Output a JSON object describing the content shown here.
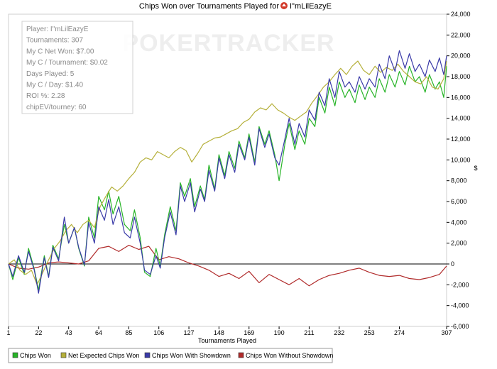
{
  "chart_data": {
    "type": "line",
    "title": "Chips Won over Tournaments Played for",
    "player_badge": "I\"mLilEazyE",
    "xlabel": "Tournaments Played",
    "ylabel": "$",
    "xlim": [
      1,
      307
    ],
    "ylim": [
      -6000,
      24000
    ],
    "x_ticks": [
      "1",
      "22",
      "43",
      "64",
      "85",
      "106",
      "127",
      "148",
      "169",
      "190",
      "211",
      "232",
      "253",
      "274",
      "307"
    ],
    "y_ticks": [
      "24,000",
      "22,000",
      "20,000",
      "18,000",
      "16,000",
      "14,000",
      "12,000",
      "10,000",
      "8,000",
      "6,000",
      "4,000",
      "2,000",
      "0",
      "-2,000",
      "-4,000",
      "-6,000"
    ],
    "watermark": "POKERTRACKER",
    "legend_position": "bottom",
    "stats": [
      "Player: I\"mLilEazyE",
      "Tournaments: 307",
      "My C Net Won: $7.00",
      "My C / Tournament: $0.02",
      "Days Played: 5",
      "My C / Day: $1.40",
      "ROI %: 2.28",
      "chipEV/tourney: 60"
    ],
    "series": [
      {
        "name": "Chips Won",
        "color": "#27b427",
        "x": [
          1,
          4,
          8,
          12,
          15,
          19,
          22,
          26,
          29,
          32,
          36,
          40,
          43,
          47,
          50,
          54,
          57,
          61,
          64,
          68,
          71,
          74,
          78,
          82,
          86,
          89,
          93,
          96,
          100,
          104,
          107,
          110,
          114,
          118,
          121,
          124,
          128,
          131,
          135,
          138,
          141,
          145,
          148,
          152,
          155,
          159,
          162,
          166,
          169,
          173,
          176,
          180,
          183,
          187,
          190,
          194,
          197,
          201,
          204,
          208,
          211,
          215,
          218,
          222,
          225,
          229,
          232,
          236,
          239,
          243,
          246,
          250,
          253,
          257,
          260,
          264,
          267,
          271,
          274,
          278,
          281,
          285,
          288,
          292,
          295,
          299,
          302,
          305,
          307
        ],
        "values": [
          0,
          -1500,
          600,
          -1000,
          1500,
          -500,
          -2500,
          800,
          -1200,
          1800,
          500,
          3800,
          2000,
          3500,
          1500,
          -200,
          4500,
          2500,
          6500,
          5200,
          7000,
          4800,
          6500,
          3800,
          3200,
          5200,
          2500,
          -800,
          -1200,
          1500,
          -200,
          2800,
          5500,
          3200,
          7800,
          6500,
          8200,
          5500,
          7500,
          6200,
          9500,
          7200,
          10500,
          8500,
          10800,
          9200,
          11800,
          10200,
          12500,
          9800,
          13200,
          11500,
          12800,
          10500,
          8000,
          11500,
          13500,
          11000,
          12800,
          11500,
          14000,
          13200,
          16000,
          14500,
          17000,
          15200,
          17500,
          16000,
          16800,
          15500,
          17200,
          15800,
          17000,
          16000,
          17800,
          16500,
          18200,
          17000,
          18500,
          17200,
          19000,
          17500,
          18000,
          16500,
          18200,
          16800,
          17500,
          16000,
          19000
        ]
      },
      {
        "name": "Net Expected Chips Won",
        "color": "#b5b03a",
        "x": [
          1,
          5,
          9,
          13,
          17,
          21,
          25,
          29,
          33,
          37,
          41,
          45,
          49,
          53,
          57,
          61,
          65,
          69,
          73,
          77,
          81,
          85,
          89,
          93,
          97,
          101,
          105,
          109,
          113,
          117,
          121,
          125,
          129,
          133,
          137,
          141,
          145,
          149,
          153,
          157,
          161,
          165,
          169,
          173,
          177,
          181,
          185,
          189,
          193,
          197,
          201,
          205,
          209,
          213,
          217,
          221,
          225,
          229,
          233,
          237,
          241,
          245,
          249,
          253,
          257,
          261,
          265,
          269,
          273,
          277,
          281,
          285,
          289,
          293,
          297,
          301,
          305,
          307
        ],
        "values": [
          0,
          400,
          -600,
          -1000,
          -600,
          -2000,
          -800,
          400,
          1500,
          2200,
          3200,
          3800,
          3000,
          3800,
          4200,
          3500,
          5500,
          6500,
          7400,
          7000,
          7500,
          8200,
          8800,
          9800,
          10200,
          10000,
          10800,
          10500,
          10200,
          10800,
          11200,
          10900,
          9800,
          10600,
          11500,
          11800,
          12100,
          12200,
          12500,
          12800,
          13000,
          13600,
          13900,
          14600,
          15000,
          14800,
          15400,
          14800,
          14500,
          14100,
          13800,
          14200,
          14600,
          15500,
          16200,
          17000,
          17500,
          18200,
          18800,
          18200,
          19000,
          19500,
          18600,
          18200,
          19000,
          18400,
          18900,
          18600,
          19200,
          18500,
          18000,
          17500,
          17300,
          18000,
          17000,
          16800,
          17800,
          19500
        ]
      },
      {
        "name": "Chips Won With Showdown",
        "color": "#3a3aa8",
        "x": [
          1,
          4,
          8,
          12,
          15,
          19,
          22,
          26,
          29,
          32,
          36,
          40,
          43,
          47,
          50,
          54,
          57,
          61,
          64,
          68,
          71,
          74,
          78,
          82,
          86,
          89,
          93,
          96,
          100,
          104,
          107,
          110,
          114,
          118,
          121,
          124,
          128,
          131,
          135,
          138,
          141,
          145,
          148,
          152,
          155,
          159,
          162,
          166,
          169,
          173,
          176,
          180,
          183,
          187,
          190,
          194,
          197,
          201,
          204,
          208,
          211,
          215,
          218,
          222,
          225,
          229,
          232,
          236,
          239,
          243,
          246,
          250,
          253,
          257,
          260,
          264,
          267,
          271,
          274,
          278,
          281,
          285,
          288,
          292,
          295,
          299,
          302,
          305,
          307
        ],
        "values": [
          0,
          -1200,
          800,
          -800,
          1200,
          -600,
          -2800,
          600,
          -1300,
          1600,
          300,
          4500,
          2000,
          3500,
          1600,
          -100,
          4000,
          2000,
          5500,
          4200,
          6200,
          3800,
          5500,
          3000,
          2500,
          4500,
          2000,
          -600,
          -1000,
          800,
          -400,
          2500,
          5000,
          2800,
          7500,
          6000,
          7800,
          5000,
          7200,
          6000,
          9000,
          7000,
          10200,
          8200,
          10500,
          8800,
          11500,
          10000,
          12200,
          9500,
          13000,
          11200,
          12500,
          10200,
          9500,
          12000,
          14000,
          11500,
          13500,
          12200,
          14800,
          13800,
          16500,
          15200,
          17800,
          16000,
          18500,
          17000,
          17500,
          16500,
          18000,
          16800,
          17800,
          17000,
          19200,
          17800,
          20000,
          18500,
          20500,
          18800,
          20200,
          18500,
          19200,
          18000,
          19600,
          18500,
          19800,
          18200,
          20000
        ]
      },
      {
        "name": "Chips Won Without Showdown",
        "color": "#b02a2a",
        "x": [
          1,
          8,
          15,
          22,
          29,
          36,
          43,
          50,
          57,
          64,
          71,
          78,
          85,
          92,
          99,
          106,
          113,
          120,
          127,
          134,
          141,
          148,
          155,
          162,
          169,
          176,
          183,
          190,
          197,
          204,
          211,
          218,
          225,
          232,
          239,
          246,
          253,
          260,
          267,
          274,
          281,
          288,
          295,
          302,
          307
        ],
        "values": [
          0,
          -400,
          -500,
          -300,
          100,
          200,
          100,
          0,
          300,
          1500,
          1700,
          1200,
          1800,
          1400,
          1700,
          400,
          700,
          500,
          100,
          -200,
          -600,
          -1200,
          -900,
          -1400,
          -700,
          -1800,
          -1000,
          -1500,
          -2000,
          -1400,
          -2100,
          -1500,
          -1100,
          -900,
          -600,
          -400,
          -800,
          -1100,
          -1200,
          -1100,
          -1400,
          -1500,
          -1300,
          -1000,
          -200
        ]
      }
    ]
  }
}
